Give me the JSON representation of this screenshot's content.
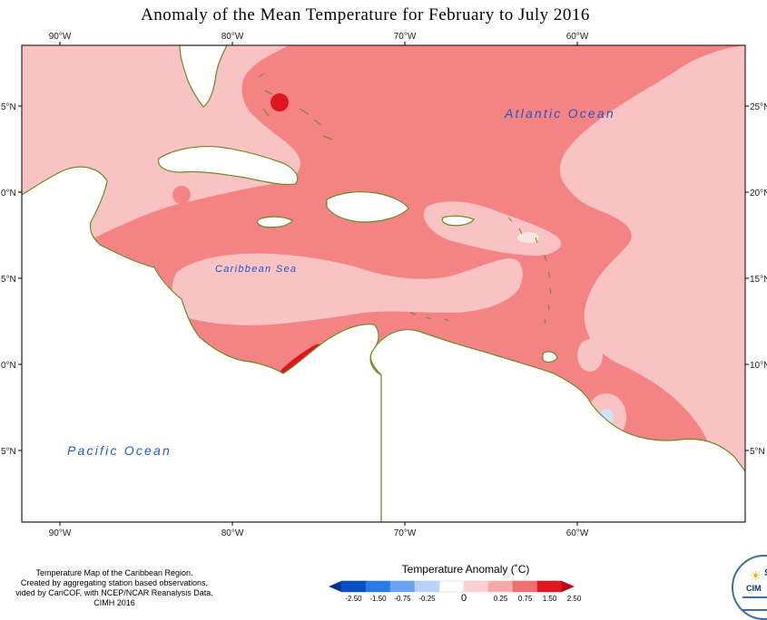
{
  "title": "Anomaly of the Mean Temperature for February to July 2016",
  "map": {
    "lon_labels_top": [
      "90°W",
      "80°W",
      "70°W",
      "60°W"
    ],
    "lon_labels_bottom": [
      "90°W",
      "80°W",
      "70°W",
      "60°W"
    ],
    "lat_labels_left": [
      "5°N",
      "0°N",
      "5°N",
      "0°N",
      "5°N"
    ],
    "lat_labels_right": [
      "25°N",
      "20°N",
      "15°N",
      "10°N",
      "5°N"
    ],
    "ocean_labels": {
      "atlantic": "Atlantic Ocean",
      "caribbean": "Caribbean Sea",
      "pacific": "Pacific Ocean"
    },
    "colors": {
      "light_pink": "#f9c3c3",
      "pink": "#f48484",
      "red": "#e0161e",
      "land": "#ffffff",
      "coast": "#6b8b21"
    }
  },
  "credits": [
    "Temperature Map of the Caribbean Region.",
    "Created by aggregating station based observations,",
    "vided by CariCOF, with NCEP/NCAR Reanalysis Data.",
    "CIMH 2016"
  ],
  "legend": {
    "title": "Temperature Anomaly (˚C)",
    "colors": [
      "#0a2f8c",
      "#0b4fc7",
      "#2b7be6",
      "#6aa4f0",
      "#b8d0fa",
      "#ffffff",
      "#fbd0d0",
      "#f7a8a8",
      "#f07070",
      "#e0161e",
      "#b50a10"
    ],
    "ticks": [
      "-2.50",
      "-1.50",
      "-0.75",
      "-0.25",
      "0",
      "0.25",
      "0.75",
      "1.50",
      "2.50"
    ]
  },
  "logo": {
    "partial_text": "CIM",
    "letter": "S"
  }
}
